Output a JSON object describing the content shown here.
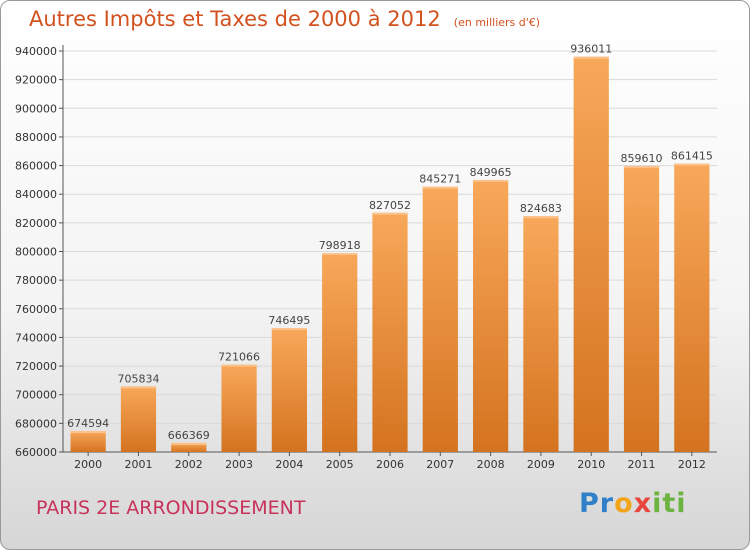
{
  "chart_data": {
    "type": "bar",
    "title": "Autres Impôts et Taxes de 2000 à 2012",
    "subtitle": "(en milliers d'€)",
    "categories": [
      "2000",
      "2001",
      "2002",
      "2003",
      "2004",
      "2005",
      "2006",
      "2007",
      "2008",
      "2009",
      "2010",
      "2011",
      "2012"
    ],
    "values": [
      674594,
      705834,
      666369,
      721066,
      746495,
      798918,
      827052,
      845271,
      849965,
      824683,
      936011,
      859610,
      861415
    ],
    "ylim": [
      660000,
      940000
    ],
    "yticks": [
      660000,
      680000,
      700000,
      720000,
      740000,
      760000,
      780000,
      800000,
      820000,
      840000,
      860000,
      880000,
      900000,
      920000,
      940000
    ],
    "grid": true,
    "legend": "none"
  },
  "footer": {
    "location": "PARIS 2E  ARRONDISSEMENT",
    "brand": [
      "P",
      "r",
      "o",
      "x",
      "i",
      "t",
      "i"
    ]
  },
  "colors": {
    "bar_light": "#f8a85a",
    "bar_dark": "#d4731f",
    "title": "#d2521f",
    "location": "#c8325a",
    "brand": [
      "#2f80c8",
      "#2f80c8",
      "#f2a41b",
      "#e8453c",
      "#6cb33f",
      "#6cb33f",
      "#6cb33f"
    ]
  }
}
